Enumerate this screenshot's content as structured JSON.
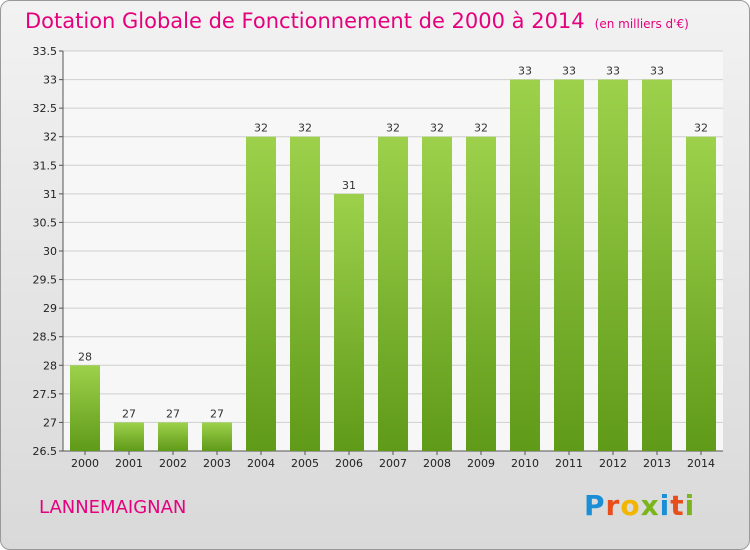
{
  "title": "Dotation Globale de Fonctionnement de 2000 à 2014",
  "subtitle": "(en milliers d'€)",
  "commune": "LANNEMAIGNAN",
  "logo": {
    "letters": [
      "P",
      "r",
      "o",
      "x",
      "i",
      "t",
      "i"
    ],
    "colors": [
      "#1a8fd6",
      "#e84e1b",
      "#f2b600",
      "#7ab51d",
      "#1a8fd6",
      "#e84e1b",
      "#7ab51d"
    ]
  },
  "colors": {
    "bar_top": "#9dd14c",
    "bar_bottom": "#5f9a18",
    "grid": "#cfcfcf",
    "title": "#e5007d"
  },
  "chart_data": {
    "type": "bar",
    "categories": [
      "2000",
      "2001",
      "2002",
      "2003",
      "2004",
      "2005",
      "2006",
      "2007",
      "2008",
      "2009",
      "2010",
      "2011",
      "2012",
      "2013",
      "2014"
    ],
    "values": [
      28,
      27,
      27,
      27,
      32,
      32,
      31,
      32,
      32,
      32,
      33,
      33,
      33,
      33,
      32
    ],
    "labels": [
      "28",
      "27",
      "27",
      "27",
      "32",
      "32",
      "31",
      "32",
      "32",
      "32",
      "33",
      "33",
      "33",
      "33",
      "32"
    ],
    "yticks": [
      "26.5",
      "27",
      "27.5",
      "28",
      "28.5",
      "29",
      "29.5",
      "30",
      "30.5",
      "31",
      "31.5",
      "32",
      "32.5",
      "33",
      "33.5"
    ],
    "ylim": [
      26.5,
      33.5
    ],
    "grid": true
  }
}
